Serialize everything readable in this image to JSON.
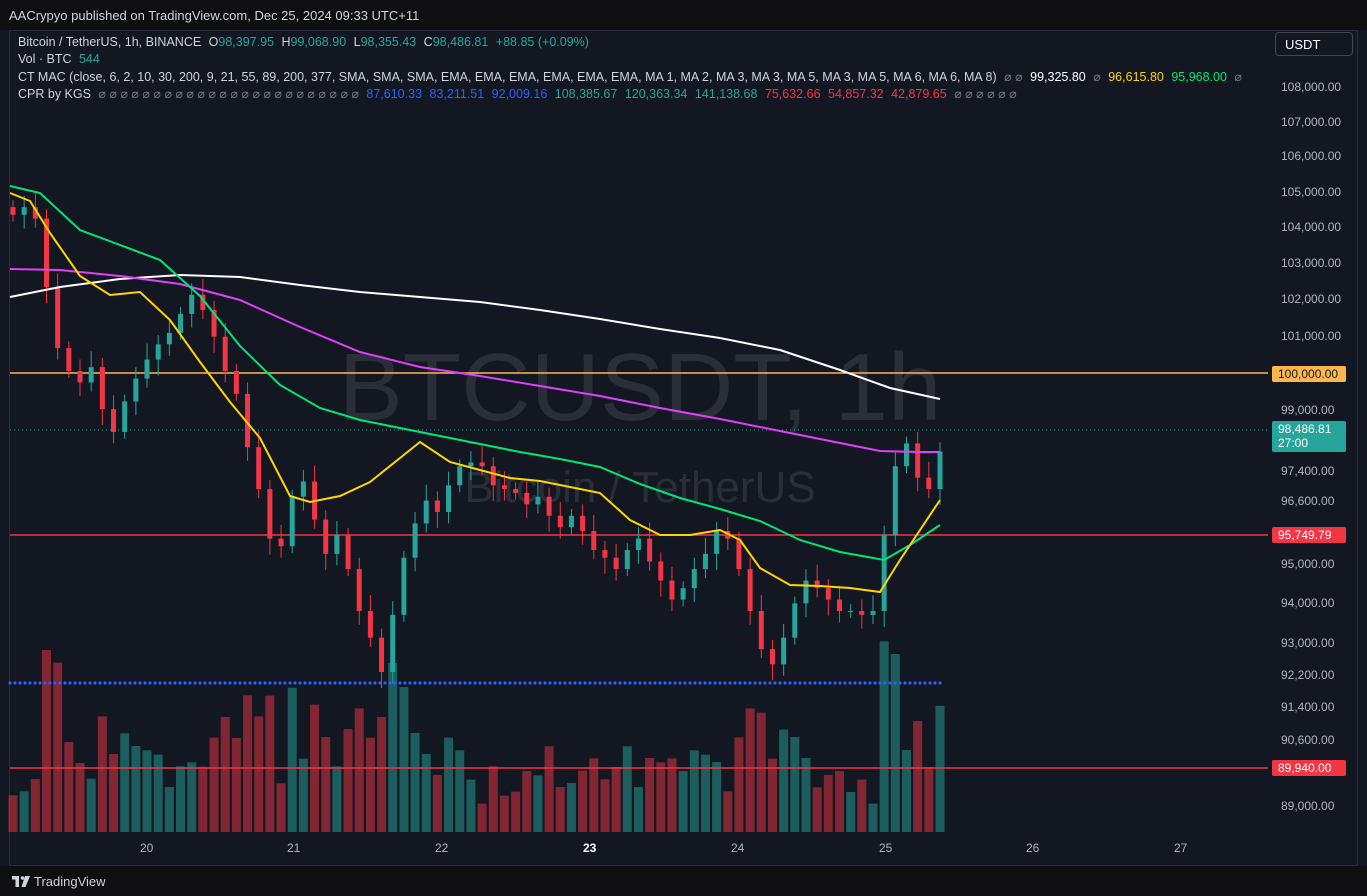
{
  "header": {
    "published": "AACrypyo published on TradingView.com, Dec 25, 2024 09:33 UTC+11"
  },
  "symbol": {
    "name": "Bitcoin / TetherUS, 1h, BINANCE",
    "o_label": "O",
    "o": "98,397.95",
    "h_label": "H",
    "h": "99,068.90",
    "l_label": "L",
    "l": "98,355.43",
    "c_label": "C",
    "c": "98,486.81",
    "change": "+88.85 (+0.09%)"
  },
  "volume": {
    "label": "Vol · BTC",
    "value": "544"
  },
  "mac": {
    "label": "CT MAC (close, 6, 2, 10, 30, 200, 9, 21, 55, 89, 200, 377, SMA, SMA, SMA, EMA, EMA, EMA, EMA, EMA, EMA, MA 1, MA 2, MA 3, MA 3, MA 5, MA 3, MA 5, MA 6, MA 6, MA 8)",
    "v1": "99,325.80",
    "v2": "96,615.80",
    "v3": "95,968.00"
  },
  "cpr": {
    "label": "CPR by KGS",
    "values": [
      "87,610.33",
      "83,211.51",
      "92,009.16",
      "108,385.67",
      "120,363.34",
      "141,138.68",
      "75,632.66",
      "54,857.32",
      "42,879.65"
    ]
  },
  "currency": "USDT",
  "watermark": {
    "symbol": "BTCUSDT, 1h",
    "name": "Bitcoin / TetherUS"
  },
  "price_axis": [
    "108,000.00",
    "107,000.00",
    "106,000.00",
    "105,000.00",
    "104,000.00",
    "103,000.00",
    "102,000.00",
    "101,000.00",
    "99,000.00",
    "97,400.00",
    "96,600.00",
    "95,000.00",
    "94,000.00",
    "93,000.00",
    "92,200.00",
    "91,400.00",
    "90,600.00",
    "89,000.00"
  ],
  "price_tags": {
    "level_100k": "100,000.00",
    "last": "98,486.81",
    "countdown": "27:00",
    "level_95749": "95,749.79",
    "level_89940": "89,940.00"
  },
  "time_axis": [
    "20",
    "21",
    "22",
    "23",
    "24",
    "25",
    "26",
    "27"
  ],
  "colors": {
    "bg": "#131722",
    "up": "#26a69a",
    "down": "#f23645",
    "orange": "#ffb74d",
    "yellow": "#ffd600",
    "green": "#00e676",
    "purple": "#e040fb",
    "white": "#ffffff",
    "blue": "#2962ff"
  },
  "footer": {
    "brand": "TradingView"
  },
  "chart_data": {
    "type": "candlestick",
    "title": "Bitcoin / TetherUS, 1h, BINANCE",
    "x_range": [
      "Dec 19",
      "Dec 27"
    ],
    "y_range": [
      88500,
      108500
    ],
    "closes": [
      104700,
      104900,
      104600,
      102800,
      101200,
      100600,
      100300,
      100700,
      99600,
      99000,
      99800,
      100400,
      100900,
      101300,
      101600,
      102100,
      102600,
      102200,
      101500,
      100600,
      100000,
      98600,
      97500,
      96200,
      96000,
      97300,
      97700,
      96700,
      95800,
      96300,
      95400,
      94300,
      93600,
      92700,
      94200,
      95700,
      96600,
      97200,
      96900,
      97600,
      98100,
      98200,
      98100,
      97600,
      97500,
      97400,
      97100,
      97300,
      96800,
      96500,
      96800,
      96400,
      95900,
      95700,
      95400,
      95900,
      96200,
      95600,
      95100,
      94600,
      94900,
      95400,
      95800,
      96400,
      96200,
      95400,
      94300,
      93300,
      92900,
      93600,
      94500,
      95100,
      94900,
      94600,
      94300,
      94300,
      94200,
      94300,
      96300,
      98100,
      98700,
      97800,
      97500,
      98486
    ]
  }
}
